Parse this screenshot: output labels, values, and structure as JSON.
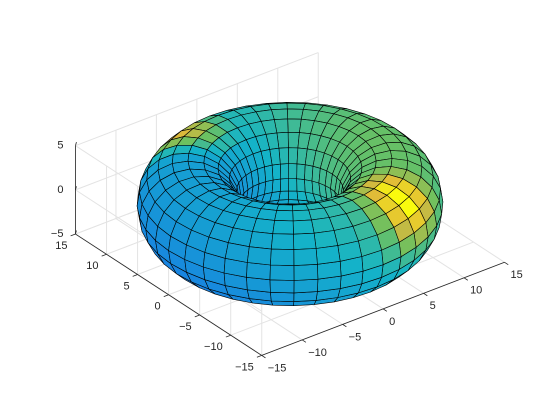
{
  "chart_data": {
    "type": "surface",
    "shape": "torus",
    "major_radius": 10,
    "minor_radius": 5,
    "u_count": 40,
    "v_count": 20,
    "view": [
      -37.5,
      30
    ],
    "colormap": "parula",
    "edge_color": "#000000",
    "xlim": [
      -15,
      15
    ],
    "ylim": [
      -15,
      15
    ],
    "zlim": [
      -5,
      5
    ],
    "xticks": [
      {
        "value": -15,
        "label": "−15"
      },
      {
        "value": -10,
        "label": "−10"
      },
      {
        "value": -5,
        "label": "−5"
      },
      0,
      5,
      10,
      15
    ],
    "yticks": [
      {
        "value": -15,
        "label": "−15"
      },
      {
        "value": -10,
        "label": "−10"
      },
      {
        "value": -5,
        "label": "−5"
      },
      0,
      5,
      10,
      15
    ],
    "zticks": [
      {
        "value": -5,
        "label": "−5"
      },
      0,
      5
    ],
    "grid": true
  }
}
